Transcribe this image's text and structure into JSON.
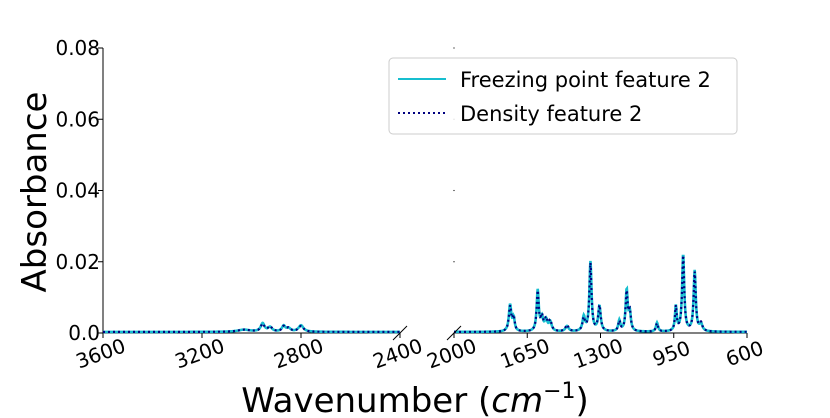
{
  "chart_data": {
    "type": "line",
    "xlabel": "Wavenumber",
    "xlabel_unit_base": "cm",
    "xlabel_unit_exp": "−1",
    "ylabel": "Absorbance",
    "ylim": [
      0,
      0.08
    ],
    "yticks": [
      "0.0",
      "0.02",
      "0.04",
      "0.06",
      "0.08"
    ],
    "x_reversed": true,
    "broken_x_axis": true,
    "legend_position": "upper-right",
    "panels": [
      {
        "xlim": [
          3600,
          2400
        ],
        "xticks": [
          "3600",
          "3200",
          "2800",
          "2400"
        ]
      },
      {
        "xlim": [
          2000,
          600
        ],
        "xticks": [
          "2000",
          "1650",
          "1300",
          "950",
          "600"
        ]
      }
    ],
    "series": [
      {
        "name": "Freezing point feature 2",
        "color": "#17becf",
        "style": "solid",
        "baseline": 0.0003,
        "peaks": [
          [
            3030,
            0.0006,
            30
          ],
          [
            2955,
            0.0023,
            9
          ],
          [
            2925,
            0.0012,
            10
          ],
          [
            2870,
            0.0016,
            8
          ],
          [
            2850,
            0.0009,
            10
          ],
          [
            2800,
            0.0018,
            12
          ],
          [
            1732,
            0.0075,
            7
          ],
          [
            1715,
            0.0035,
            6
          ],
          [
            1600,
            0.0115,
            6
          ],
          [
            1580,
            0.0035,
            7
          ],
          [
            1560,
            0.003,
            8
          ],
          [
            1540,
            0.0025,
            8
          ],
          [
            1460,
            0.0015,
            9
          ],
          [
            1380,
            0.004,
            7
          ],
          [
            1348,
            0.0195,
            6
          ],
          [
            1305,
            0.007,
            7
          ],
          [
            1210,
            0.003,
            6
          ],
          [
            1175,
            0.0115,
            6
          ],
          [
            1160,
            0.005,
            6
          ],
          [
            1030,
            0.0025,
            6
          ],
          [
            940,
            0.007,
            5
          ],
          [
            905,
            0.0215,
            6
          ],
          [
            850,
            0.017,
            6
          ],
          [
            820,
            0.002,
            8
          ]
        ]
      },
      {
        "name": "Density feature 2",
        "color": "#000080",
        "style": "dotted",
        "baseline": 0.0003,
        "peaks": [
          [
            3030,
            0.0006,
            30
          ],
          [
            2955,
            0.0021,
            9
          ],
          [
            2925,
            0.0014,
            10
          ],
          [
            2870,
            0.0014,
            8
          ],
          [
            2850,
            0.001,
            10
          ],
          [
            2800,
            0.0016,
            12
          ],
          [
            1732,
            0.007,
            7
          ],
          [
            1715,
            0.0038,
            6
          ],
          [
            1600,
            0.011,
            6
          ],
          [
            1580,
            0.0038,
            7
          ],
          [
            1560,
            0.0033,
            8
          ],
          [
            1540,
            0.0028,
            8
          ],
          [
            1460,
            0.0018,
            9
          ],
          [
            1380,
            0.0035,
            7
          ],
          [
            1348,
            0.019,
            6
          ],
          [
            1305,
            0.0072,
            7
          ],
          [
            1210,
            0.0028,
            6
          ],
          [
            1175,
            0.011,
            6
          ],
          [
            1160,
            0.0052,
            6
          ],
          [
            1030,
            0.0023,
            6
          ],
          [
            940,
            0.0068,
            5
          ],
          [
            905,
            0.021,
            6
          ],
          [
            850,
            0.0165,
            6
          ],
          [
            820,
            0.0022,
            8
          ]
        ]
      }
    ]
  }
}
